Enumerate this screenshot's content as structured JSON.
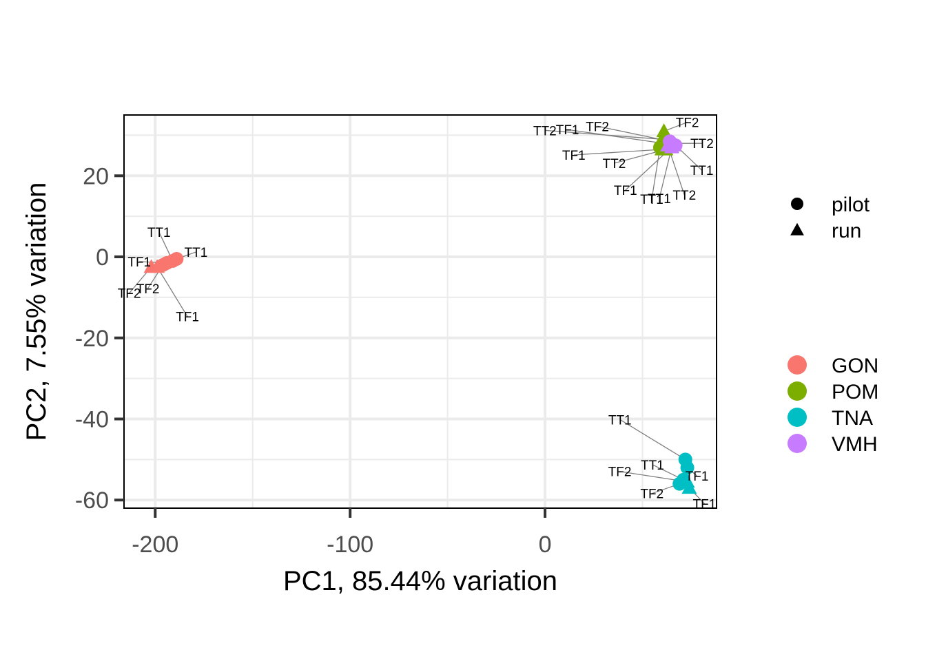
{
  "chart_data": {
    "type": "scatter",
    "xlabel": "PC1, 85.44% variation",
    "ylabel": "PC2, 7.55% variation",
    "xlim": [
      -216,
      88
    ],
    "ylim": [
      -62,
      35
    ],
    "x_ticks": [
      -200,
      -100,
      0
    ],
    "x_tick_labels": [
      "-200",
      "-100",
      "0"
    ],
    "x_minor_ticks": [
      -150,
      -50,
      50
    ],
    "y_ticks": [
      -60,
      -40,
      -20,
      0,
      20
    ],
    "y_tick_labels": [
      "-60",
      "-40",
      "-20",
      "0",
      "20"
    ],
    "y_minor_ticks": [
      -50,
      -30,
      -10,
      10,
      30
    ],
    "grid": true,
    "shape_legend": {
      "position": "right",
      "items": [
        {
          "label": "pilot",
          "shape": "circle"
        },
        {
          "label": "run",
          "shape": "triangle"
        }
      ]
    },
    "color_legend": {
      "position": "right",
      "items": [
        {
          "label": "GON",
          "color": "#F8766D"
        },
        {
          "label": "POM",
          "color": "#7CAE00"
        },
        {
          "label": "TNA",
          "color": "#00BFC4"
        },
        {
          "label": "VMH",
          "color": "#C77CFF"
        }
      ]
    },
    "points": [
      {
        "group": "GON",
        "batch": "pilot",
        "label": "TT1",
        "x": -189,
        "y": -0.5
      },
      {
        "group": "GON",
        "batch": "pilot",
        "label": "TT1",
        "x": -191,
        "y": -1
      },
      {
        "group": "GON",
        "batch": "pilot",
        "label": "TF1",
        "x": -194,
        "y": -1.5
      },
      {
        "group": "GON",
        "batch": "pilot",
        "label": "TF2",
        "x": -196,
        "y": -2
      },
      {
        "group": "GON",
        "batch": "run",
        "label": "TF1",
        "x": -199,
        "y": -2.5
      },
      {
        "group": "GON",
        "batch": "run",
        "label": "TF2",
        "x": -202,
        "y": -2.5
      },
      {
        "group": "POM",
        "batch": "run",
        "label": "TF2",
        "x": 61,
        "y": 31
      },
      {
        "group": "POM",
        "batch": "run",
        "label": "TT2",
        "x": 60,
        "y": 29
      },
      {
        "group": "POM",
        "batch": "pilot",
        "label": "TF1",
        "x": 61,
        "y": 28
      },
      {
        "group": "POM",
        "batch": "pilot",
        "label": "TT1",
        "x": 59,
        "y": 27
      },
      {
        "group": "POM",
        "batch": "run",
        "label": "TT2",
        "x": 62,
        "y": 26.5
      },
      {
        "group": "POM",
        "batch": "run",
        "label": "TF1",
        "x": 60,
        "y": 26.5
      },
      {
        "group": "VMH",
        "batch": "pilot",
        "label": "TF2",
        "x": 64,
        "y": 28.5
      },
      {
        "group": "VMH",
        "batch": "pilot",
        "label": "TT2",
        "x": 65,
        "y": 28
      },
      {
        "group": "VMH",
        "batch": "run",
        "label": "TF1",
        "x": 66,
        "y": 27.5
      },
      {
        "group": "VMH",
        "batch": "run",
        "label": "TT1",
        "x": 65,
        "y": 27
      },
      {
        "group": "VMH",
        "batch": "pilot",
        "label": "TT1",
        "x": 67,
        "y": 27.5
      },
      {
        "group": "VMH",
        "batch": "run",
        "label": "TT2",
        "x": 63,
        "y": 27.5
      },
      {
        "group": "TNA",
        "batch": "pilot",
        "label": "TT1",
        "x": 72,
        "y": -50
      },
      {
        "group": "TNA",
        "batch": "pilot",
        "label": "TF1",
        "x": 73,
        "y": -52
      },
      {
        "group": "TNA",
        "batch": "pilot",
        "label": "TT1",
        "x": 71,
        "y": -55
      },
      {
        "group": "TNA",
        "batch": "run",
        "label": "TF2",
        "x": 73,
        "y": -55.5
      },
      {
        "group": "TNA",
        "batch": "pilot",
        "label": "TF2",
        "x": 69,
        "y": -56
      },
      {
        "group": "TNA",
        "batch": "run",
        "label": "TF1",
        "x": 74,
        "y": -57
      }
    ]
  }
}
